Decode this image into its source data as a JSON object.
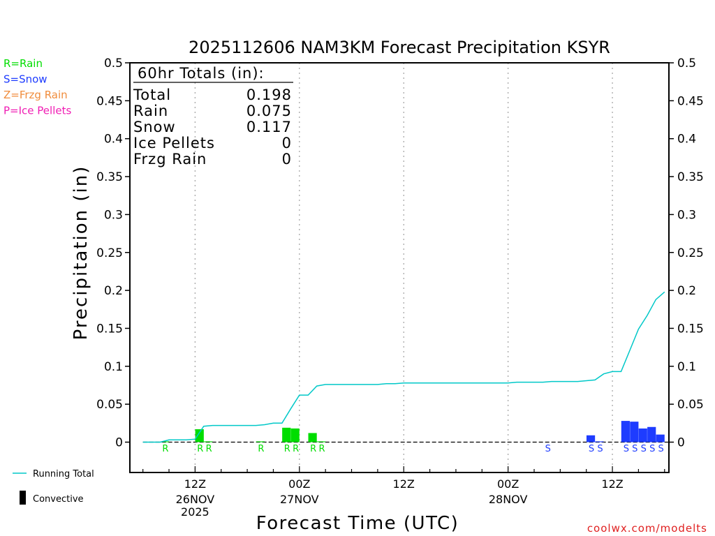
{
  "chart_data": {
    "type": "bar+line",
    "title": "2025112606 NAM3KM Forecast Precipitation KSYR",
    "xlabel": "Forecast Time (UTC)",
    "ylabel": "Precipitation (in)",
    "ylim": [
      -0.04,
      0.5
    ],
    "yticks": [
      0,
      0.05,
      0.1,
      0.15,
      0.2,
      0.25,
      0.3,
      0.35,
      0.4,
      0.45,
      0.5
    ],
    "ytick_labels": [
      "0",
      "0.05",
      "0.1",
      "0.15",
      "0.2",
      "0.25",
      "0.3",
      "0.35",
      "0.4",
      "0.45",
      "0.5"
    ],
    "xlim_hours": [
      -1.5,
      60.5
    ],
    "xticks": [
      {
        "hour": 6,
        "label": "12Z",
        "sub1": "26NOV",
        "sub2": "2025"
      },
      {
        "hour": 18,
        "label": "00Z",
        "sub1": "27NOV",
        "sub2": ""
      },
      {
        "hour": 30,
        "label": "12Z",
        "sub1": "",
        "sub2": ""
      },
      {
        "hour": 42,
        "label": "00Z",
        "sub1": "28NOV",
        "sub2": ""
      },
      {
        "hour": 54,
        "label": "12Z",
        "sub1": "",
        "sub2": ""
      }
    ],
    "bars": [
      {
        "hour": 3,
        "value": 0.001,
        "type": "R"
      },
      {
        "hour": 7,
        "value": 0.017,
        "type": "R"
      },
      {
        "hour": 8,
        "value": 0.001,
        "type": "R"
      },
      {
        "hour": 14,
        "value": 0.001,
        "type": "R"
      },
      {
        "hour": 17,
        "value": 0.019,
        "type": "R"
      },
      {
        "hour": 18,
        "value": 0.018,
        "type": "R"
      },
      {
        "hour": 20,
        "value": 0.012,
        "type": "R"
      },
      {
        "hour": 21,
        "value": 0.001,
        "type": "R"
      },
      {
        "hour": 47,
        "value": 0.0,
        "type": "S"
      },
      {
        "hour": 52,
        "value": 0.009,
        "type": "S"
      },
      {
        "hour": 53,
        "value": 0.001,
        "type": "S"
      },
      {
        "hour": 56,
        "value": 0.028,
        "type": "S"
      },
      {
        "hour": 57,
        "value": 0.027,
        "type": "S"
      },
      {
        "hour": 58,
        "value": 0.018,
        "type": "S"
      },
      {
        "hour": 59,
        "value": 0.02,
        "type": "S"
      },
      {
        "hour": 60,
        "value": 0.01,
        "type": "S"
      }
    ],
    "running_total": {
      "hours": [
        0,
        1,
        2,
        3,
        4,
        5,
        6,
        7,
        8,
        9,
        10,
        11,
        12,
        13,
        14,
        15,
        16,
        17,
        18,
        19,
        20,
        21,
        22,
        23,
        24,
        25,
        26,
        27,
        28,
        29,
        30,
        31,
        32,
        33,
        34,
        35,
        36,
        37,
        38,
        39,
        40,
        41,
        42,
        43,
        44,
        45,
        46,
        47,
        48,
        49,
        50,
        51,
        52,
        53,
        54,
        55,
        56,
        57,
        58,
        59,
        60
      ],
      "values": [
        0,
        0,
        0,
        0.003,
        0.003,
        0.003,
        0.004,
        0.021,
        0.022,
        0.022,
        0.022,
        0.022,
        0.022,
        0.022,
        0.023,
        0.025,
        0.025,
        0.044,
        0.062,
        0.062,
        0.074,
        0.076,
        0.076,
        0.076,
        0.076,
        0.076,
        0.076,
        0.076,
        0.077,
        0.077,
        0.078,
        0.078,
        0.078,
        0.078,
        0.078,
        0.078,
        0.078,
        0.078,
        0.078,
        0.078,
        0.078,
        0.078,
        0.078,
        0.079,
        0.079,
        0.079,
        0.079,
        0.08,
        0.08,
        0.08,
        0.08,
        0.081,
        0.082,
        0.09,
        0.093,
        0.093,
        0.121,
        0.149,
        0.167,
        0.188,
        0.198
      ]
    },
    "totals_box": {
      "header": "60hr Totals (in):",
      "rows": [
        {
          "label": "Total",
          "value": "0.198"
        },
        {
          "label": "Rain",
          "value": "0.075"
        },
        {
          "label": "Snow",
          "value": "0.117"
        },
        {
          "label": "Ice Pellets",
          "value": "0"
        },
        {
          "label": "Frzg Rain",
          "value": "0"
        }
      ]
    },
    "precip_legend": [
      {
        "text": "R=Rain",
        "color": "#00dd00"
      },
      {
        "text": "S=Snow",
        "color": "#1e3cff"
      },
      {
        "text": "Z=Frzg Rain",
        "color": "#f08c3c"
      },
      {
        "text": "P=Ice Pellets",
        "color": "#f01eb4"
      }
    ],
    "line_legend": [
      {
        "text": "Running Total",
        "kind": "line",
        "color": "#00c8c8"
      },
      {
        "text": "Convective",
        "kind": "bar",
        "color": "#000000"
      }
    ],
    "colors": {
      "R": "#00dd00",
      "S": "#1e3cff",
      "Z": "#f08c3c",
      "P": "#f01eb4",
      "running_total": "#00c8c8",
      "axis": "#000000",
      "grid": "#a0a0a0"
    },
    "credit": "coolwx.com/modelts",
    "credit_color": "#e02020"
  }
}
